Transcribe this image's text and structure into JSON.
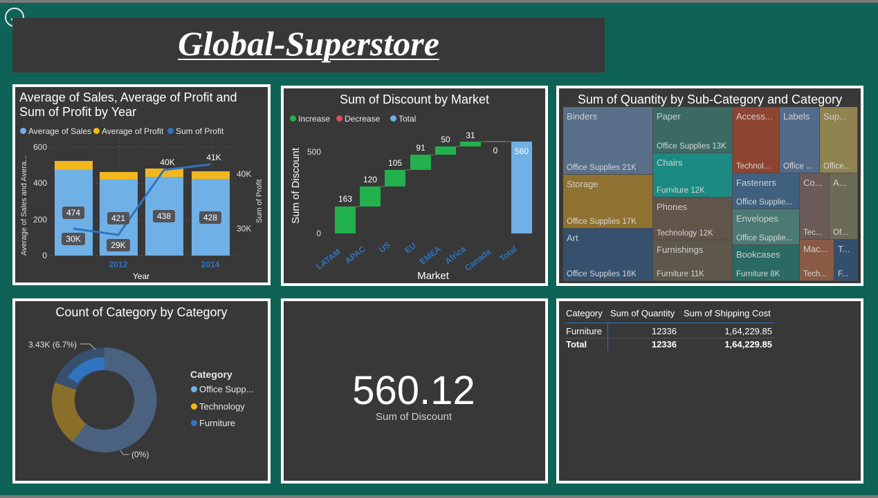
{
  "nav": {
    "back_icon": "arrow-left-circle-icon",
    "back_glyph": "←"
  },
  "header": {
    "title": "Global-Superstore"
  },
  "colors": {
    "avg_sales": "#6fb0e6",
    "avg_profit": "#f2b71d",
    "sum_profit": "#2f74c0",
    "increase": "#22b14c",
    "decrease": "#e34a5a",
    "total": "#6fb0e6",
    "teal_bg": "#0f6356",
    "panel_bg": "#383838"
  },
  "combo_chart": {
    "title_line1": "Average of Sales, Average of Profit and",
    "title_line2": "Sum of Profit by Year",
    "legend": [
      "Average of Sales",
      "Average of Profit",
      "Sum of Profit"
    ],
    "y_axis_label": "Average of Sales and Avera...",
    "y2_axis_label": "Sum of Profit",
    "x_axis_label": "Year",
    "y_ticks": [
      "600",
      "400",
      "200",
      "0"
    ],
    "y2_ticks": [
      "40K",
      "30K"
    ],
    "x_ticks": [
      "2012",
      "2014"
    ],
    "sales_labels": [
      "474",
      "421",
      "438",
      "428"
    ],
    "profit_labels": [
      "30K",
      "29K",
      "40K",
      "41K"
    ]
  },
  "waterfall_chart": {
    "title": "Sum of Discount by Market",
    "legend": [
      "Increase",
      "Decrease",
      "Total"
    ],
    "y_axis_label": "Sum of Discount",
    "x_axis_label": "Market",
    "y_ticks": [
      "500",
      "0"
    ],
    "categories": [
      "LATAM",
      "APAC",
      "US",
      "EU",
      "EMEA",
      "Africa",
      "Canada",
      "Total"
    ],
    "value_labels": [
      "163",
      "120",
      "105",
      "91",
      "50",
      "31",
      "0",
      "560"
    ]
  },
  "treemap": {
    "title": "Sum of Quantity by Sub-Category and Category",
    "cells": [
      {
        "name": "Binders",
        "value": "Office Supplies 21K",
        "color": "#596f89"
      },
      {
        "name": "Storage",
        "value": "Office Supplies 17K",
        "color": "#8f7231"
      },
      {
        "name": "Art",
        "value": "Office Supplies 16K",
        "color": "#36506e"
      },
      {
        "name": "Paper",
        "value": "Office Supplies 13K",
        "color": "#3b6a64"
      },
      {
        "name": "Chairs",
        "value": "Furniture 12K",
        "color": "#1b8a82"
      },
      {
        "name": "Phones",
        "value": "Technology 12K",
        "color": "#615449"
      },
      {
        "name": "Furnishings",
        "value": "Furniture 11K",
        "color": "#5e584a"
      },
      {
        "name": "Access...",
        "value": "Technol...",
        "color": "#8d4431"
      },
      {
        "name": "Labels",
        "value": "Office ...",
        "color": "#526b8a"
      },
      {
        "name": "Sup...",
        "value": "Office...",
        "color": "#8f8350"
      },
      {
        "name": "Fasteners",
        "value": "Office Supplie...",
        "color": "#3f617f"
      },
      {
        "name": "Envelopes",
        "value": "Office Supplie...",
        "color": "#4b7a73"
      },
      {
        "name": "Bookcases",
        "value": "Furniture 8K",
        "color": "#2a6a62"
      },
      {
        "name": "Co...",
        "value": "Tec...",
        "color": "#6c5a58"
      },
      {
        "name": "A...",
        "value": "Of...",
        "color": "#6c6b58"
      },
      {
        "name": "Mac...",
        "value": "Tech...",
        "color": "#8a5a45"
      },
      {
        "name": "T...",
        "value": "F...",
        "color": "#32506e"
      }
    ]
  },
  "donut_chart": {
    "title": "Count of Category by Category",
    "legend_title": "Category",
    "legend": [
      "Office Supp...",
      "Technology",
      "Furniture"
    ],
    "slice_colors": [
      "#4a6280",
      "#8a6f2b",
      "#2f74c0"
    ],
    "label_top": "3.43K (6.7%)",
    "label_bottom": "(0%)"
  },
  "kpi_card": {
    "value": "560.12",
    "label": "Sum of Discount"
  },
  "table": {
    "headers": [
      "Category",
      "Sum of Quantity",
      "Sum of Shipping Cost"
    ],
    "rows": [
      [
        "Furniture",
        "12336",
        "1,64,229.85"
      ]
    ],
    "total": [
      "Total",
      "12336",
      "1,64,229.85"
    ]
  }
}
